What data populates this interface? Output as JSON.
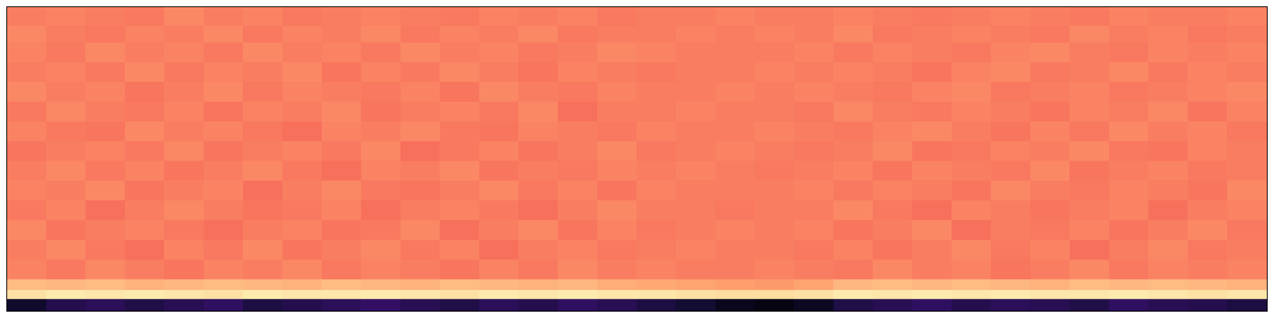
{
  "chart_data": {
    "type": "heatmap",
    "color": "magma",
    "tick_labels": false,
    "xlim": [
      0,
      32
    ],
    "ylim": [
      0,
      100
    ],
    "zlim": [
      0,
      1
    ],
    "y_edges": [
      0,
      4,
      7,
      10.5,
      17,
      23.5,
      30,
      36.5,
      43,
      49.5,
      56,
      62.5,
      69,
      75.5,
      82,
      88.5,
      94,
      100
    ],
    "cells": [
      [
        0.08,
        0.14,
        0.16,
        0.13,
        0.15,
        0.17,
        0.12,
        0.14,
        0.16,
        0.18,
        0.15,
        0.13,
        0.16,
        0.14,
        0.17,
        0.15,
        0.12,
        0.09,
        0.05,
        0.03,
        0.06,
        0.13,
        0.15,
        0.17,
        0.14,
        0.16,
        0.15,
        0.13,
        0.17,
        0.15,
        0.14,
        0.12
      ],
      [
        0.94,
        0.96,
        0.95,
        0.96,
        0.95,
        0.94,
        0.96,
        0.95,
        0.95,
        0.96,
        0.95,
        0.94,
        0.96,
        0.95,
        0.96,
        0.95,
        0.95,
        0.94,
        0.93,
        0.93,
        0.94,
        0.96,
        0.95,
        0.96,
        0.95,
        0.96,
        0.95,
        0.95,
        0.96,
        0.95,
        0.94,
        0.95
      ],
      [
        0.86,
        0.85,
        0.86,
        0.84,
        0.85,
        0.86,
        0.85,
        0.84,
        0.86,
        0.85,
        0.84,
        0.86,
        0.85,
        0.84,
        0.85,
        0.83,
        0.82,
        0.81,
        0.8,
        0.79,
        0.81,
        0.85,
        0.86,
        0.85,
        0.86,
        0.85,
        0.84,
        0.86,
        0.85,
        0.86,
        0.85,
        0.84
      ],
      [
        0.74,
        0.72,
        0.75,
        0.73,
        0.71,
        0.74,
        0.73,
        0.75,
        0.72,
        0.74,
        0.73,
        0.71,
        0.74,
        0.72,
        0.75,
        0.73,
        0.74,
        0.73,
        0.73,
        0.74,
        0.73,
        0.72,
        0.75,
        0.73,
        0.74,
        0.71,
        0.73,
        0.75,
        0.72,
        0.74,
        0.73,
        0.74
      ],
      [
        0.73,
        0.75,
        0.72,
        0.7,
        0.74,
        0.72,
        0.75,
        0.71,
        0.73,
        0.75,
        0.72,
        0.74,
        0.7,
        0.73,
        0.74,
        0.72,
        0.73,
        0.74,
        0.73,
        0.73,
        0.72,
        0.74,
        0.71,
        0.73,
        0.75,
        0.72,
        0.74,
        0.7,
        0.73,
        0.75,
        0.72,
        0.73
      ],
      [
        0.75,
        0.71,
        0.73,
        0.74,
        0.72,
        0.7,
        0.73,
        0.74,
        0.71,
        0.72,
        0.75,
        0.7,
        0.73,
        0.75,
        0.71,
        0.74,
        0.72,
        0.73,
        0.74,
        0.73,
        0.74,
        0.71,
        0.73,
        0.75,
        0.7,
        0.73,
        0.72,
        0.74,
        0.71,
        0.73,
        0.75,
        0.72
      ],
      [
        0.72,
        0.74,
        0.7,
        0.73,
        0.75,
        0.73,
        0.71,
        0.72,
        0.74,
        0.7,
        0.73,
        0.74,
        0.72,
        0.7,
        0.73,
        0.75,
        0.73,
        0.73,
        0.72,
        0.73,
        0.73,
        0.75,
        0.72,
        0.7,
        0.74,
        0.73,
        0.71,
        0.73,
        0.74,
        0.7,
        0.73,
        0.74
      ],
      [
        0.74,
        0.73,
        0.75,
        0.71,
        0.73,
        0.74,
        0.7,
        0.73,
        0.75,
        0.72,
        0.71,
        0.73,
        0.75,
        0.72,
        0.74,
        0.71,
        0.74,
        0.73,
        0.73,
        0.73,
        0.74,
        0.72,
        0.74,
        0.73,
        0.71,
        0.75,
        0.73,
        0.72,
        0.74,
        0.73,
        0.71,
        0.75
      ],
      [
        0.73,
        0.75,
        0.72,
        0.74,
        0.71,
        0.73,
        0.75,
        0.72,
        0.7,
        0.74,
        0.73,
        0.75,
        0.71,
        0.73,
        0.72,
        0.74,
        0.73,
        0.74,
        0.73,
        0.72,
        0.73,
        0.74,
        0.71,
        0.74,
        0.73,
        0.72,
        0.75,
        0.71,
        0.73,
        0.74,
        0.72,
        0.73
      ],
      [
        0.71,
        0.73,
        0.74,
        0.72,
        0.75,
        0.71,
        0.73,
        0.74,
        0.72,
        0.75,
        0.7,
        0.72,
        0.74,
        0.71,
        0.73,
        0.75,
        0.72,
        0.73,
        0.74,
        0.73,
        0.72,
        0.73,
        0.75,
        0.71,
        0.72,
        0.74,
        0.73,
        0.75,
        0.72,
        0.71,
        0.74,
        0.73
      ],
      [
        0.74,
        0.72,
        0.71,
        0.75,
        0.73,
        0.74,
        0.72,
        0.7,
        0.74,
        0.73,
        0.75,
        0.72,
        0.71,
        0.74,
        0.73,
        0.72,
        0.74,
        0.73,
        0.73,
        0.74,
        0.73,
        0.72,
        0.74,
        0.75,
        0.73,
        0.71,
        0.74,
        0.72,
        0.75,
        0.73,
        0.74,
        0.72
      ],
      [
        0.72,
        0.75,
        0.73,
        0.72,
        0.74,
        0.71,
        0.74,
        0.73,
        0.75,
        0.71,
        0.73,
        0.74,
        0.72,
        0.75,
        0.7,
        0.73,
        0.73,
        0.74,
        0.73,
        0.73,
        0.72,
        0.75,
        0.73,
        0.72,
        0.74,
        0.73,
        0.71,
        0.74,
        0.73,
        0.75,
        0.71,
        0.74
      ],
      [
        0.75,
        0.73,
        0.74,
        0.71,
        0.73,
        0.75,
        0.72,
        0.74,
        0.73,
        0.72,
        0.74,
        0.71,
        0.75,
        0.73,
        0.72,
        0.74,
        0.73,
        0.73,
        0.74,
        0.73,
        0.74,
        0.73,
        0.72,
        0.74,
        0.75,
        0.72,
        0.73,
        0.74,
        0.72,
        0.73,
        0.74,
        0.75
      ],
      [
        0.73,
        0.74,
        0.72,
        0.75,
        0.72,
        0.74,
        0.73,
        0.75,
        0.71,
        0.74,
        0.72,
        0.75,
        0.73,
        0.71,
        0.74,
        0.73,
        0.72,
        0.73,
        0.73,
        0.74,
        0.73,
        0.74,
        0.73,
        0.71,
        0.74,
        0.75,
        0.72,
        0.73,
        0.75,
        0.72,
        0.74,
        0.73
      ],
      [
        0.74,
        0.72,
        0.75,
        0.73,
        0.74,
        0.72,
        0.75,
        0.73,
        0.74,
        0.72,
        0.75,
        0.73,
        0.74,
        0.72,
        0.73,
        0.75,
        0.74,
        0.73,
        0.73,
        0.73,
        0.74,
        0.72,
        0.74,
        0.73,
        0.72,
        0.74,
        0.75,
        0.73,
        0.72,
        0.74,
        0.73,
        0.74
      ],
      [
        0.75,
        0.73,
        0.72,
        0.74,
        0.73,
        0.75,
        0.72,
        0.74,
        0.73,
        0.75,
        0.72,
        0.74,
        0.73,
        0.75,
        0.72,
        0.73,
        0.73,
        0.74,
        0.73,
        0.74,
        0.73,
        0.75,
        0.72,
        0.73,
        0.74,
        0.73,
        0.72,
        0.75,
        0.73,
        0.74,
        0.72,
        0.73
      ],
      [
        0.73,
        0.74,
        0.73,
        0.72,
        0.75,
        0.73,
        0.74,
        0.72,
        0.73,
        0.74,
        0.73,
        0.72,
        0.74,
        0.73,
        0.74,
        0.72,
        0.73,
        0.73,
        0.74,
        0.73,
        0.73,
        0.74,
        0.73,
        0.72,
        0.73,
        0.74,
        0.73,
        0.72,
        0.74,
        0.73,
        0.73,
        0.74
      ]
    ]
  }
}
